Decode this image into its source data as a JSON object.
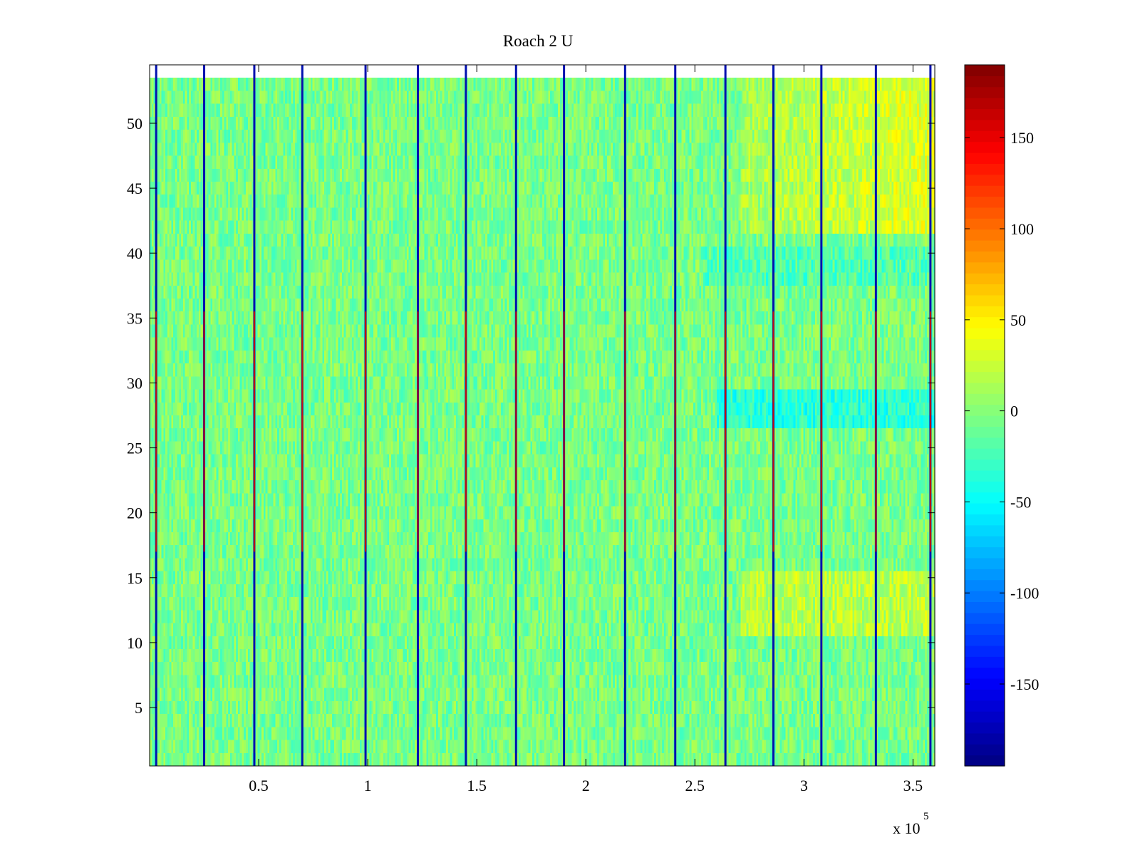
{
  "chart_data": {
    "type": "heatmap",
    "title": "Roach 2 U",
    "xlabel": "",
    "ylabel": "",
    "xlim": [
      0,
      360000
    ],
    "ylim": [
      0.5,
      54.5
    ],
    "x_ticks": [
      50000,
      100000,
      150000,
      200000,
      250000,
      300000,
      350000
    ],
    "x_tick_labels": [
      "0.5",
      "1",
      "1.5",
      "2",
      "2.5",
      "3",
      "3.5"
    ],
    "x_exponent_label": "x 10",
    "x_exponent_power": "5",
    "y_ticks": [
      5,
      10,
      15,
      20,
      25,
      30,
      35,
      40,
      45,
      50
    ],
    "y_tick_labels": [
      "5",
      "10",
      "15",
      "20",
      "25",
      "30",
      "35",
      "40",
      "45",
      "50"
    ],
    "rows": 54,
    "colormap": "jet",
    "clim": [
      -195,
      190
    ],
    "colorbar_ticks": [
      150,
      100,
      50,
      0,
      -50,
      -100,
      -150
    ],
    "colorbar_tick_labels": [
      "150",
      "100",
      "50",
      "0",
      "-50",
      "-100",
      "-150"
    ],
    "boundary_columns_x": [
      3000,
      25000,
      48000,
      70000,
      99000,
      123000,
      145000,
      168000,
      190000,
      218000,
      241000,
      264000,
      286000,
      308000,
      333000,
      358000
    ],
    "grid": false,
    "colorbar_position": "right"
  }
}
